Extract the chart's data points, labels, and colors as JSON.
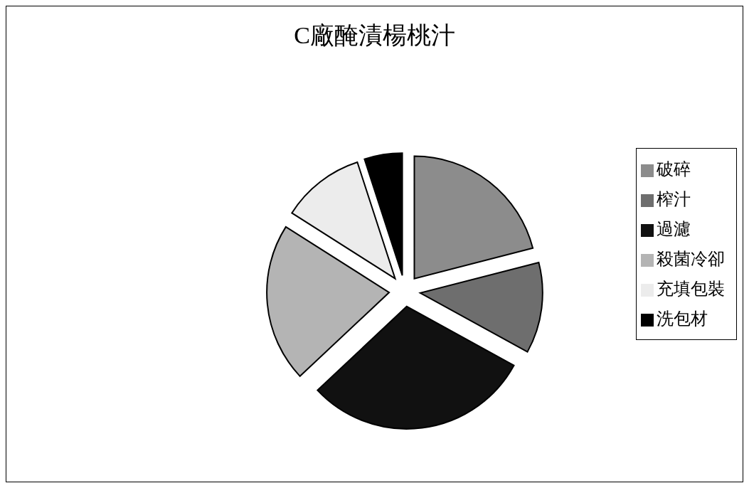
{
  "chart_data": {
    "type": "pie",
    "title": "C廠醃漬楊桃汁",
    "categories": [
      "破碎",
      "榨汁",
      "過濾",
      "殺菌冷卻",
      "充填包裝",
      "洗包材"
    ],
    "values": [
      21,
      12,
      30,
      21,
      11,
      5
    ],
    "colors": [
      "#8c8c8c",
      "#6e6e6e",
      "#111111",
      "#b4b4b4",
      "#ececec",
      "#000000"
    ],
    "legend": "right"
  }
}
